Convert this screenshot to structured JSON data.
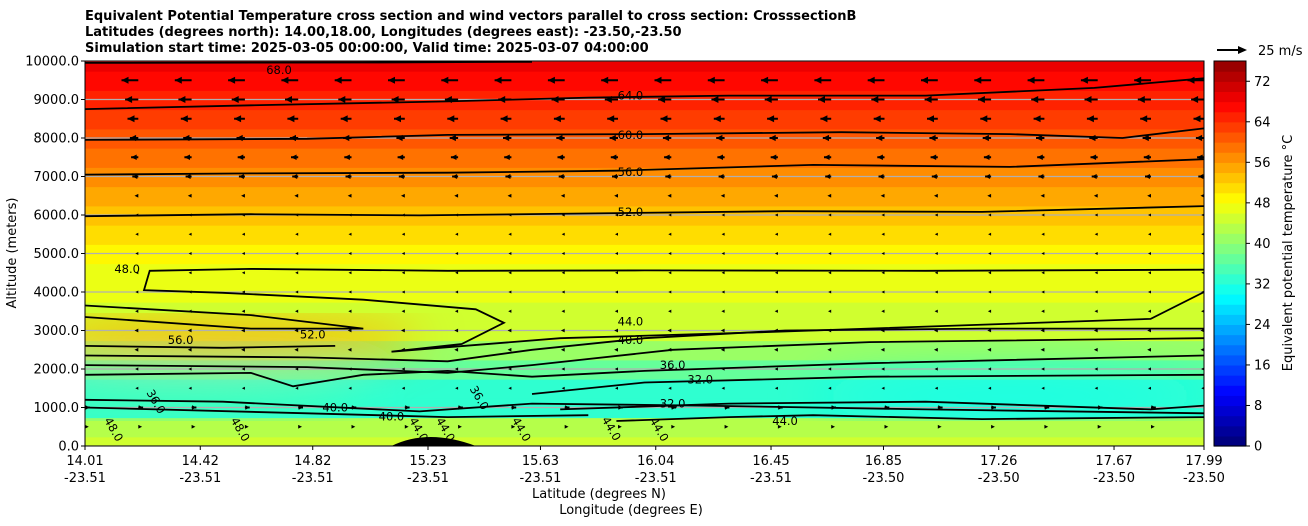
{
  "chart_data": {
    "type": "contourf",
    "title_lines": [
      "Equivalent Potential Temperature cross section and wind vectors parallel to cross section: CrosssectionB",
      "Latitudes (degrees north): 14.00,18.00, Longitudes (degrees east): -23.50,-23.50",
      "Simulation start time: 2025-03-05 00:00:00, Valid time: 2025-03-07 04:00:00"
    ],
    "xlabel": "Latitude (degrees N)",
    "xlabel2": "Longitude (degrees E)",
    "ylabel": "Altitude (meters)",
    "xlim": [
      14.01,
      17.99
    ],
    "ylim": [
      0,
      10000
    ],
    "x_ticks": [
      {
        "lat": "14.01",
        "lon": "-23.51",
        "v": 14.01
      },
      {
        "lat": "14.42",
        "lon": "-23.51",
        "v": 14.42
      },
      {
        "lat": "14.82",
        "lon": "-23.51",
        "v": 14.82
      },
      {
        "lat": "15.23",
        "lon": "-23.51",
        "v": 15.23
      },
      {
        "lat": "15.63",
        "lon": "-23.51",
        "v": 15.63
      },
      {
        "lat": "16.04",
        "lon": "-23.51",
        "v": 16.04
      },
      {
        "lat": "16.45",
        "lon": "-23.51",
        "v": 16.45
      },
      {
        "lat": "16.85",
        "lon": "-23.50",
        "v": 16.85
      },
      {
        "lat": "17.26",
        "lon": "-23.50",
        "v": 17.26
      },
      {
        "lat": "17.67",
        "lon": "-23.50",
        "v": 17.67
      },
      {
        "lat": "17.99",
        "lon": "-23.50",
        "v": 17.99
      }
    ],
    "y_ticks": [
      "0.0",
      "1000.0",
      "2000.0",
      "3000.0",
      "4000.0",
      "5000.0",
      "6000.0",
      "7000.0",
      "8000.0",
      "9000.0",
      "10000.0"
    ],
    "grid": "horizontal",
    "colorbar": {
      "label": "Equivalent potential temperature $^\\circ$C",
      "label_text": "Equivalent potential temperature °C",
      "min": 0,
      "max": 76,
      "ticks": [
        "0",
        "8",
        "16",
        "24",
        "32",
        "40",
        "48",
        "56",
        "64",
        "72"
      ]
    },
    "quiver_key": {
      "label": "25 m/s",
      "value": 25
    },
    "theta_e_profile": {
      "altitude": [
        0,
        500,
        1000,
        1500,
        2000,
        2500,
        3000,
        3500,
        4000,
        4500,
        5000,
        5500,
        6000,
        6500,
        7000,
        7500,
        8000,
        8500,
        9000,
        9500,
        10000
      ],
      "value": [
        45,
        43,
        33,
        33,
        37,
        41,
        44,
        45,
        46,
        47,
        49,
        50,
        52,
        54,
        56,
        58,
        60,
        62,
        64,
        66,
        68
      ]
    },
    "anomalies": [
      {
        "lat": 14.5,
        "alt": 2800,
        "value": 55
      },
      {
        "lat": 17.3,
        "alt": 1300,
        "value": 30
      },
      {
        "lat": 14.3,
        "alt": 1300,
        "value": 34
      }
    ],
    "contours": [
      {
        "level": "64.0",
        "label_at": [
          15.95,
          9100
        ],
        "points": [
          [
            14.01,
            8750
          ],
          [
            14.6,
            8850
          ],
          [
            15.3,
            8950
          ],
          [
            15.8,
            9050
          ],
          [
            16.3,
            9100
          ],
          [
            17.0,
            9100
          ],
          [
            17.6,
            9300
          ],
          [
            17.99,
            9550
          ]
        ]
      },
      {
        "level": "68.0",
        "label_at": [
          14.7,
          9960
        ],
        "points": [
          [
            14.01,
            9950
          ],
          [
            15.0,
            9960
          ],
          [
            15.6,
            9980
          ]
        ]
      },
      {
        "level": "60.0",
        "label_at": [
          15.95,
          8080
        ],
        "points": [
          [
            14.01,
            7950
          ],
          [
            14.8,
            7980
          ],
          [
            15.3,
            8080
          ],
          [
            16.0,
            8100
          ],
          [
            16.7,
            8150
          ],
          [
            17.3,
            8100
          ],
          [
            17.7,
            8000
          ],
          [
            17.99,
            8250
          ]
        ]
      },
      {
        "level": "56.0",
        "label_at": [
          15.95,
          7120
        ],
        "points": [
          [
            14.01,
            7050
          ],
          [
            14.6,
            7080
          ],
          [
            15.3,
            7100
          ],
          [
            15.9,
            7150
          ],
          [
            16.6,
            7300
          ],
          [
            17.3,
            7250
          ],
          [
            17.99,
            7450
          ]
        ]
      },
      {
        "level": "52.0",
        "label_at": [
          15.95,
          6080
        ],
        "points": [
          [
            14.01,
            5970
          ],
          [
            14.6,
            6020
          ],
          [
            15.2,
            5990
          ],
          [
            15.9,
            6050
          ],
          [
            16.5,
            6100
          ],
          [
            17.2,
            6080
          ],
          [
            17.99,
            6230
          ]
        ]
      },
      {
        "level": "48.0",
        "label_at": [
          14.16,
          4600
        ],
        "points": [
          [
            17.99,
            4580
          ],
          [
            17.0,
            4550
          ],
          [
            16.0,
            4560
          ],
          [
            15.3,
            4550
          ],
          [
            14.6,
            4600
          ],
          [
            14.24,
            4550
          ],
          [
            14.22,
            4050
          ],
          [
            14.5,
            3980
          ],
          [
            15.0,
            3800
          ],
          [
            15.4,
            3550
          ],
          [
            15.5,
            3200
          ],
          [
            15.35,
            2650
          ],
          [
            15.1,
            2450
          ],
          [
            15.7,
            2800
          ],
          [
            16.4,
            2950
          ],
          [
            17.8,
            3300
          ],
          [
            17.99,
            4000
          ]
        ]
      },
      {
        "level": "52.0",
        "label_at": [
          14.82,
          2900
        ],
        "points": [
          [
            14.01,
            3650
          ],
          [
            14.6,
            3400
          ],
          [
            15.0,
            3050
          ],
          [
            14.6,
            3050
          ],
          [
            14.01,
            3350
          ]
        ]
      },
      {
        "level": "56.0",
        "label_at": [
          14.35,
          2750
        ],
        "points": [
          [
            14.01,
            2600
          ],
          [
            14.5,
            2550
          ],
          [
            14.9,
            2600
          ]
        ]
      },
      {
        "level": "44.0",
        "label_at": [
          15.95,
          3230
        ],
        "points": [
          [
            14.01,
            2350
          ],
          [
            14.8,
            2300
          ],
          [
            15.3,
            2200
          ],
          [
            15.6,
            2500
          ],
          [
            16.0,
            2800
          ],
          [
            16.5,
            3000
          ],
          [
            17.2,
            3050
          ],
          [
            17.99,
            3050
          ]
        ]
      },
      {
        "level": "40.0",
        "label_at": [
          15.95,
          2750
        ],
        "points": [
          [
            14.01,
            2100
          ],
          [
            14.8,
            2050
          ],
          [
            15.3,
            1900
          ],
          [
            15.6,
            2100
          ],
          [
            16.1,
            2500
          ],
          [
            16.8,
            2700
          ],
          [
            17.99,
            2800
          ]
        ]
      },
      {
        "level": "36.0",
        "label_at": [
          16.1,
          2100
        ],
        "points": [
          [
            14.01,
            1850
          ],
          [
            14.6,
            1900
          ],
          [
            14.75,
            1550
          ],
          [
            15.0,
            1850
          ],
          [
            15.3,
            1950
          ],
          [
            15.6,
            1800
          ],
          [
            16.0,
            1950
          ],
          [
            16.8,
            2150
          ],
          [
            17.99,
            2350
          ]
        ]
      },
      {
        "level": "32.0",
        "label_at": [
          16.1,
          1730
        ],
        "points": [
          [
            15.6,
            1350
          ],
          [
            16.0,
            1650
          ],
          [
            16.8,
            1800
          ],
          [
            17.99,
            1850
          ]
        ]
      },
      {
        "level": "32.0",
        "label_at": [
          16.1,
          1100
        ],
        "points": [
          [
            15.7,
            950
          ],
          [
            16.3,
            1100
          ],
          [
            17.0,
            1150
          ],
          [
            17.8,
            950
          ],
          [
            17.99,
            1050
          ]
        ]
      },
      {
        "level": "40.0",
        "label_at": [
          14.9,
          1000
        ],
        "points": [
          [
            14.01,
            1200
          ],
          [
            14.5,
            1150
          ],
          [
            15.2,
            900
          ],
          [
            15.6,
            1100
          ],
          [
            16.2,
            1050
          ],
          [
            17.0,
            950
          ],
          [
            17.99,
            850
          ]
        ]
      },
      {
        "level": "40.0",
        "label_at": [
          15.1,
          770
        ],
        "points": [
          [
            14.01,
            1000
          ],
          [
            14.8,
            850
          ],
          [
            15.3,
            750
          ],
          [
            15.8,
            800
          ]
        ]
      },
      {
        "level": "44.0",
        "label_at": [
          16.5,
          650
        ],
        "points": [
          [
            15.9,
            650
          ],
          [
            16.3,
            750
          ],
          [
            16.6,
            800
          ],
          [
            17.2,
            700
          ],
          [
            17.99,
            750
          ]
        ]
      }
    ],
    "contour_vertical_labels": [
      {
        "level": "48.0",
        "lat": 14.1,
        "alt": 300
      },
      {
        "level": "48.0",
        "lat": 14.55,
        "alt": 80
      },
      {
        "level": "36.0",
        "lat": 14.25,
        "alt": 1100
      },
      {
        "level": "44.0",
        "lat": 15.15,
        "alt": 180
      },
      {
        "level": "44.0",
        "lat": 15.55,
        "alt": 220
      },
      {
        "level": "44.0",
        "lat": 15.87,
        "alt": 400
      },
      {
        "level": "44.0",
        "lat": 16.04,
        "alt": 350
      },
      {
        "level": "36.0",
        "lat": 15.4,
        "alt": 1200
      },
      {
        "level": "44.0",
        "lat": 15.2,
        "alt": -20
      }
    ],
    "wind_u_profile": {
      "altitude": [
        500,
        1000,
        1500,
        2000,
        2500,
        3000,
        3500,
        4000,
        4500,
        5000,
        5500,
        6000,
        6500,
        7000,
        7500,
        8000,
        8500,
        9000,
        9500
      ],
      "u_ms": [
        3,
        4,
        -1,
        -2,
        -3,
        -3,
        -2,
        -1,
        -0.5,
        -0.3,
        -0.5,
        -1,
        -3,
        -5,
        -6,
        -7,
        -9,
        -11,
        -14
      ]
    }
  }
}
